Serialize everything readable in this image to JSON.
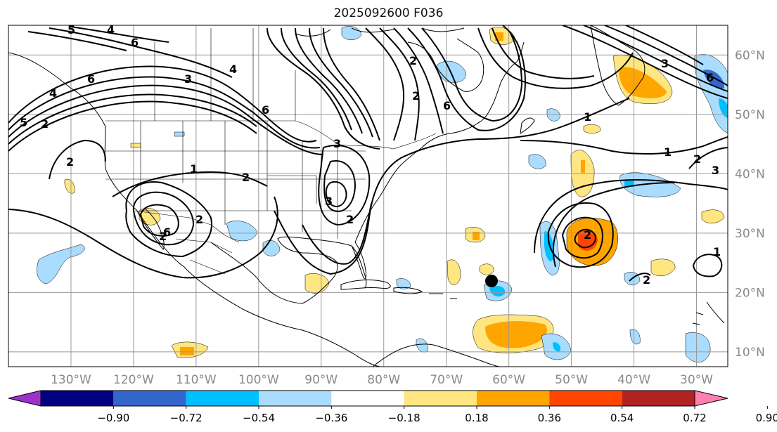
{
  "title": "2025092600 F036",
  "map": {
    "lon_range": [
      -140,
      -25
    ],
    "lat_range": [
      7.5,
      65
    ],
    "lon_labels": [
      "130°W",
      "120°W",
      "110°W",
      "100°W",
      "90°W",
      "80°W",
      "70°W",
      "60°W",
      "50°W",
      "40°W",
      "30°W"
    ],
    "lat_labels": [
      "10°N",
      "20°N",
      "30°N",
      "40°N",
      "50°N",
      "60°N"
    ],
    "contour_labels": [
      "5",
      "4",
      "6",
      "6",
      "5",
      "4",
      "2",
      "3",
      "4",
      "6",
      "2",
      "1",
      "2",
      "2",
      "2",
      "2",
      "3",
      "3",
      "2",
      "2",
      "6",
      "6",
      "3",
      "1",
      "1",
      "2",
      "3",
      "2",
      "1",
      "2",
      "6"
    ]
  },
  "colorbar": {
    "colors": [
      "#9933cc",
      "#000080",
      "#3366cc",
      "#00bfff",
      "#aadcff",
      "#ffffff",
      "#ffe680",
      "#ffa500",
      "#ff4500",
      "#b22222",
      "#ff80b0"
    ],
    "tick_labels": [
      "−0.90",
      "−0.72",
      "−0.54",
      "−0.36",
      "−0.18",
      "0.18",
      "0.36",
      "0.54",
      "0.72",
      "0.90"
    ],
    "extend": "both"
  },
  "colors": {
    "contour": "#000000",
    "grid": "#999999",
    "coast": "#000000",
    "marker": "#000000"
  }
}
